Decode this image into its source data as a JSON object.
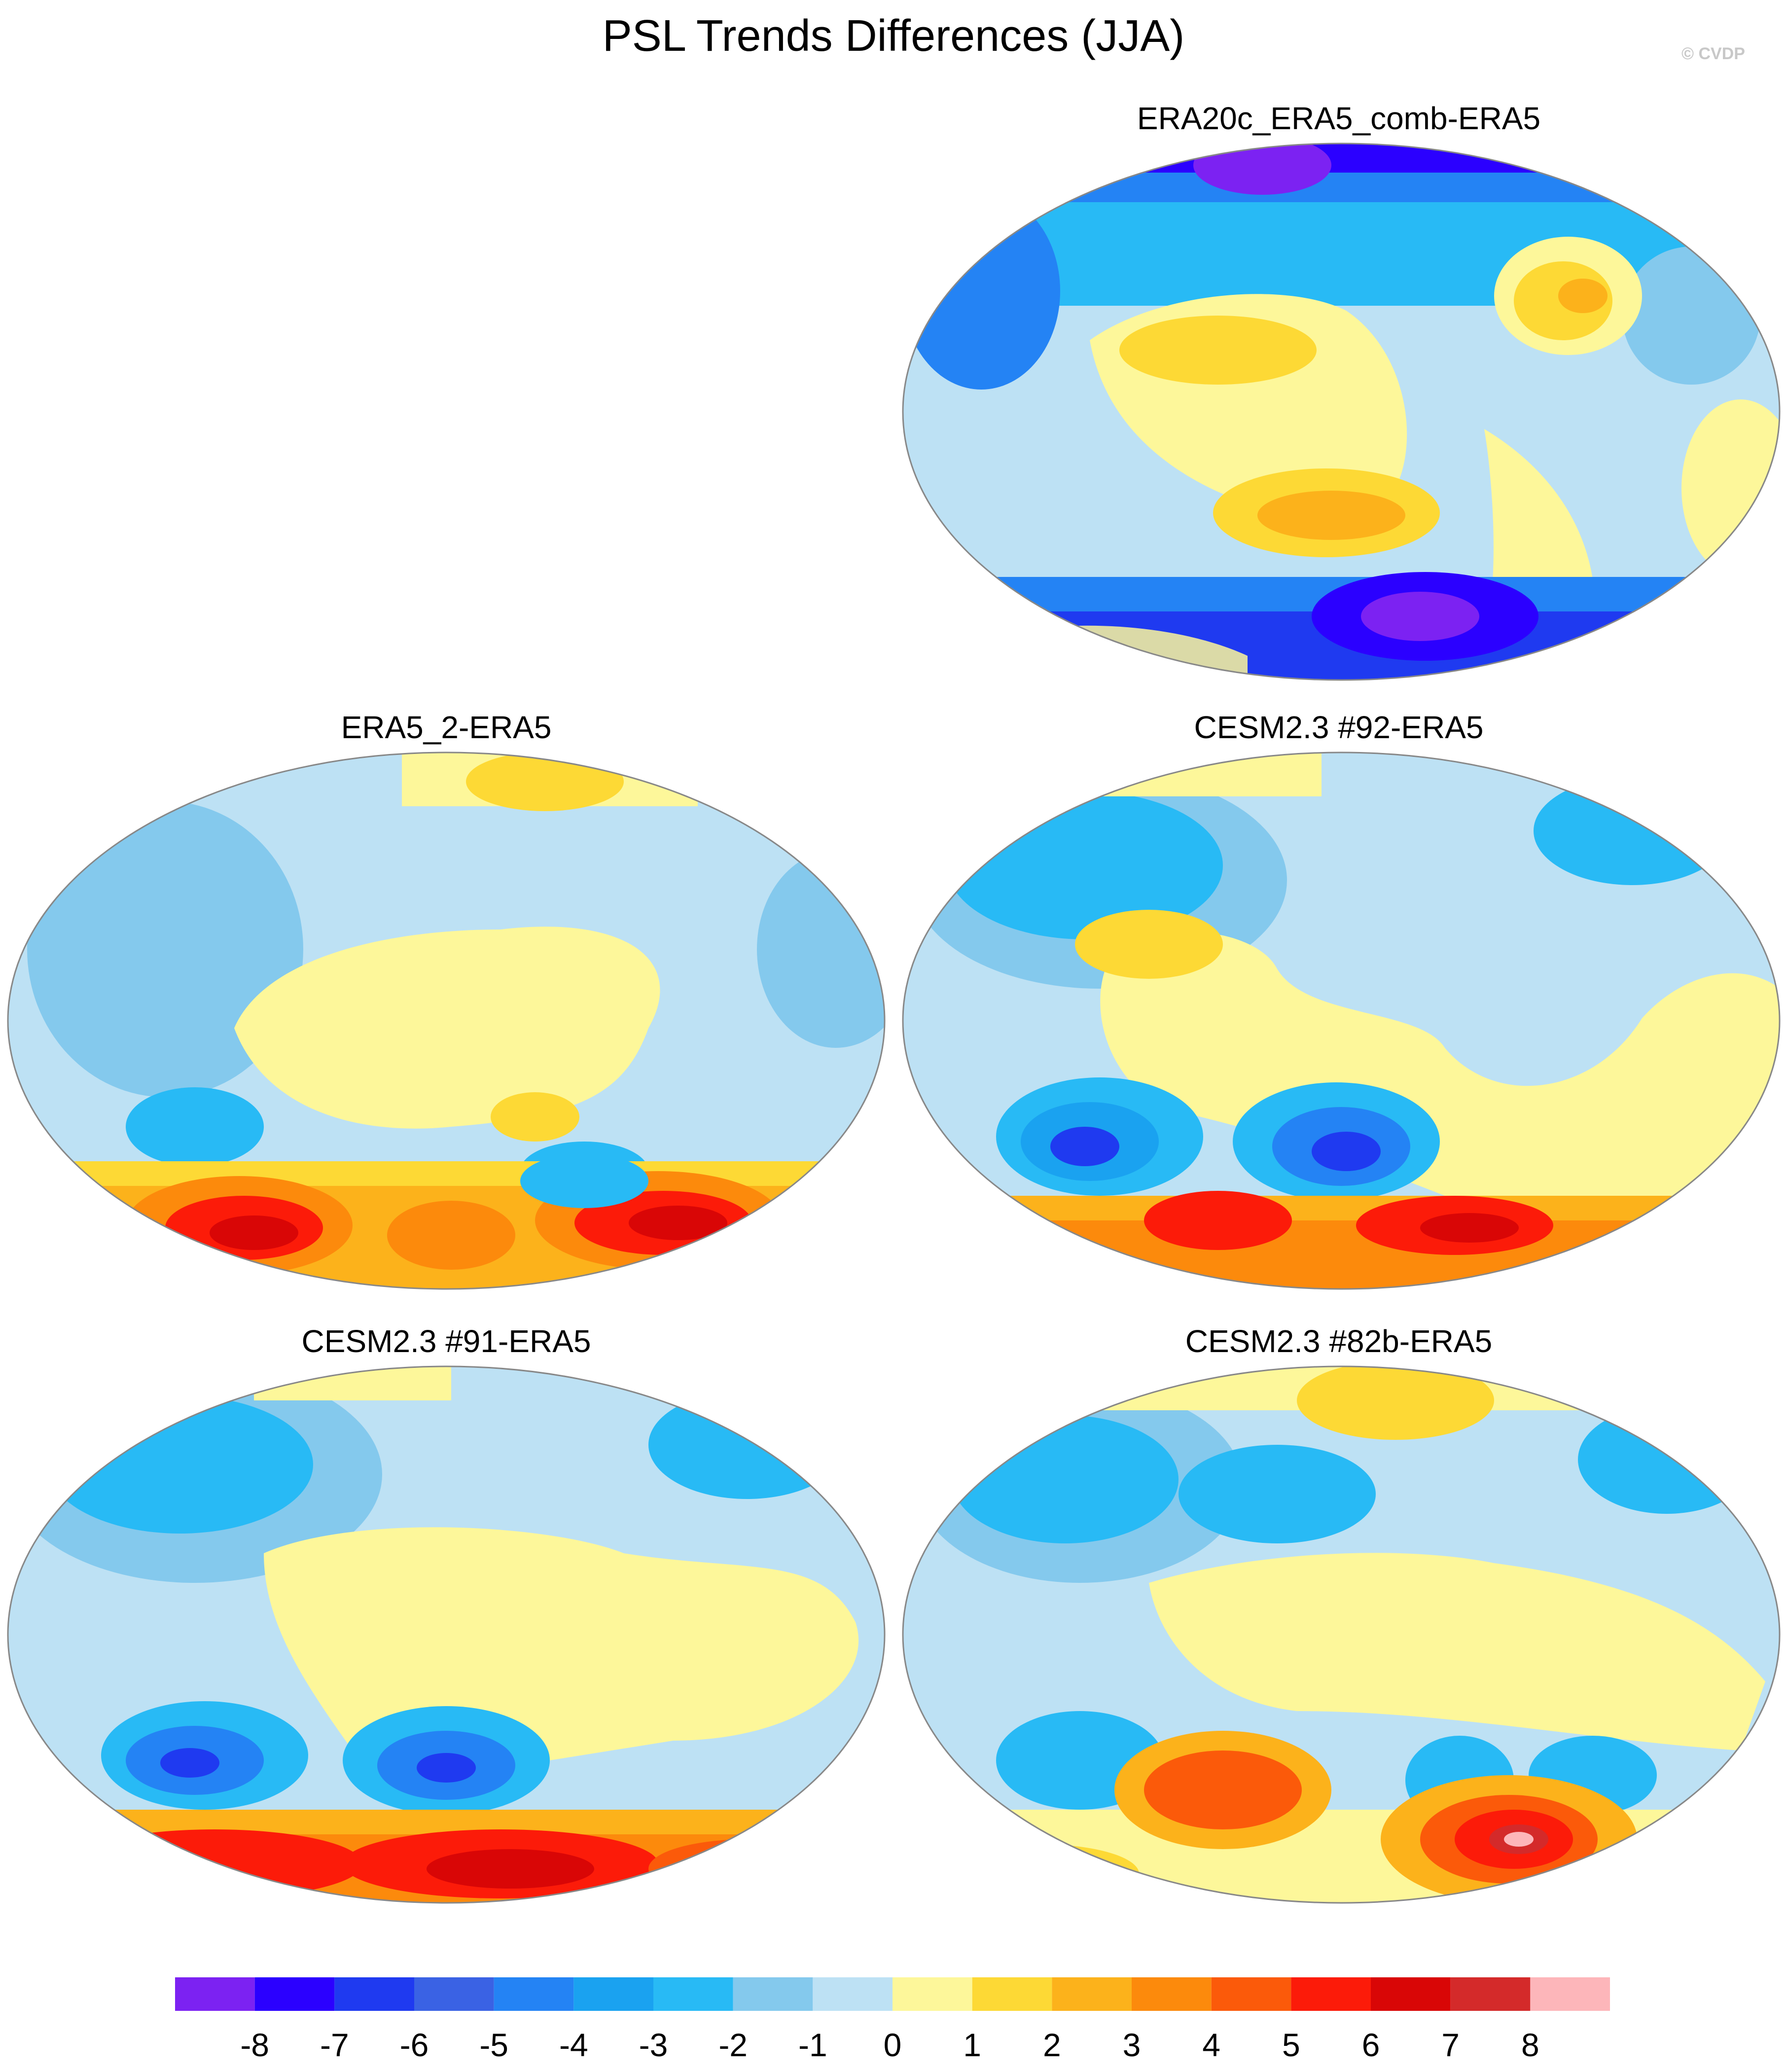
{
  "figure": {
    "title": "PSL Trends Differences (JJA)",
    "credit": "© CVDP"
  },
  "panels": [
    {
      "id": "p1",
      "title": "ERA20c_ERA5_comb-ERA5"
    },
    {
      "id": "p2",
      "title": "ERA5_2-ERA5"
    },
    {
      "id": "p3",
      "title": "CESM2.3 #92-ERA5"
    },
    {
      "id": "p4",
      "title": "CESM2.3 #91-ERA5"
    },
    {
      "id": "p5",
      "title": "CESM2.3 #82b-ERA5"
    }
  ],
  "colorbar": {
    "labels": [
      "-8",
      "-7",
      "-6",
      "-5",
      "-4",
      "-3",
      "-2",
      "-1",
      "0",
      "1",
      "2",
      "3",
      "4",
      "5",
      "6",
      "7",
      "8"
    ],
    "colors": [
      "#7c22f2",
      "#2b00ff",
      "#1f3af0",
      "#3a62e4",
      "#2483f4",
      "#1aa2f0",
      "#28baf5",
      "#84c9ed",
      "#bde1f4",
      "#fdf79a",
      "#fdd935",
      "#fcb21b",
      "#fc8a0c",
      "#fb5a0a",
      "#fc1b09",
      "#d90606",
      "#d42a2a",
      "#fdb6ba"
    ]
  }
}
